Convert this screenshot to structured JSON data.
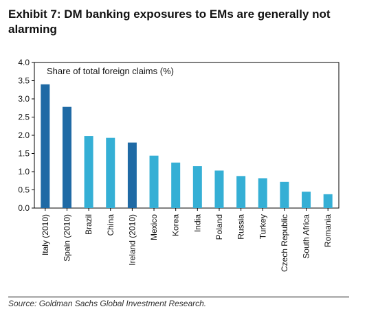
{
  "title": "Exhibit 7: DM banking exposures to EMs are generally not alarming",
  "source": "Source: Goldman Sachs Global Investment Research.",
  "chart_data": {
    "type": "bar",
    "inner_label": "Share of total foreign claims (%)",
    "categories": [
      "Italy (2010)",
      "Spain (2010)",
      "Brazil",
      "China",
      "Ireland (2010)",
      "Mexico",
      "Korea",
      "India",
      "Poland",
      "Russia",
      "Turkey",
      "Czech Republic",
      "South Africa",
      "Romania"
    ],
    "values": [
      3.4,
      2.78,
      1.98,
      1.93,
      1.8,
      1.44,
      1.25,
      1.15,
      1.03,
      0.88,
      0.82,
      0.72,
      0.45,
      0.38
    ],
    "colors": [
      "#1f6aa5",
      "#1f6aa5",
      "#35afd5",
      "#35afd5",
      "#1f6aa5",
      "#35afd5",
      "#35afd5",
      "#35afd5",
      "#35afd5",
      "#35afd5",
      "#35afd5",
      "#35afd5",
      "#35afd5",
      "#35afd5"
    ],
    "y_ticks": [
      "0.0",
      "0.5",
      "1.0",
      "1.5",
      "2.0",
      "2.5",
      "3.0",
      "3.5",
      "4.0"
    ],
    "ylim": [
      0,
      4
    ],
    "grid": false,
    "legend": "none"
  }
}
